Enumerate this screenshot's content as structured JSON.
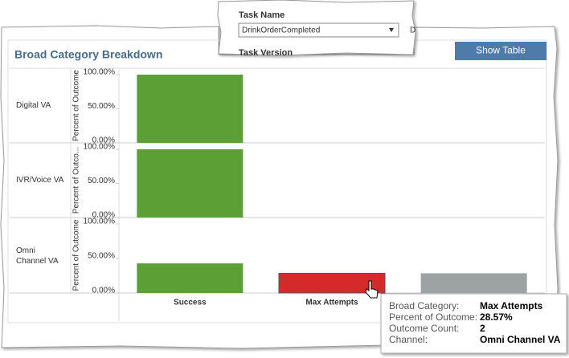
{
  "filter": {
    "label": "Task Name",
    "selected": "DrinkOrderCompleted",
    "next_label": "Task Version",
    "side_text": "D"
  },
  "panel": {
    "title": "Broad Category Breakdown",
    "button": "Show Table"
  },
  "chart_data": [
    {
      "type": "bar",
      "row_label": "Digital VA",
      "ylabel": "Percent of Outcome",
      "categories": [
        "Success",
        "Max Attempts",
        null
      ],
      "values": [
        100,
        null,
        null
      ],
      "colors": [
        "#5b9f35",
        "#d42a2a",
        "#9da2a3"
      ],
      "ylim": [
        0,
        100
      ],
      "yticks": [
        {
          "value": 0,
          "label": "0.00%"
        },
        {
          "value": 50,
          "label": "50.00%"
        },
        {
          "value": 100,
          "label": "100.00%"
        }
      ]
    },
    {
      "type": "bar",
      "row_label": "IVR/Voice VA",
      "ylabel": "Percent of Outco...",
      "categories": [
        "Success",
        "Max Attempts",
        null
      ],
      "values": [
        100,
        null,
        null
      ],
      "colors": [
        "#5b9f35",
        "#d42a2a",
        "#9da2a3"
      ],
      "ylim": [
        0,
        100
      ],
      "yticks": [
        {
          "value": 0,
          "label": "0.00%"
        },
        {
          "value": 50,
          "label": "50.00%"
        },
        {
          "value": 100,
          "label": "100.00%"
        }
      ]
    },
    {
      "type": "bar",
      "row_label": "Omni Channel VA",
      "ylabel": "Percent of Outcome",
      "categories": [
        "Success",
        "Max Attempts",
        null
      ],
      "values": [
        42.86,
        28.57,
        28.57
      ],
      "colors": [
        "#5b9f35",
        "#d42a2a",
        "#9da2a3"
      ],
      "ylim": [
        0,
        100
      ],
      "yticks": [
        {
          "value": 0,
          "label": "0.00%"
        },
        {
          "value": 50,
          "label": "50.00%"
        },
        {
          "value": 100,
          "label": "100.00%"
        }
      ]
    }
  ],
  "tooltip": {
    "rows": [
      [
        "Broad Category:",
        "Max Attempts"
      ],
      [
        "Percent of Outcome:",
        "28.57%"
      ],
      [
        "Outcome Count:",
        "2"
      ],
      [
        "Channel:",
        "Omni Channel VA"
      ]
    ]
  }
}
